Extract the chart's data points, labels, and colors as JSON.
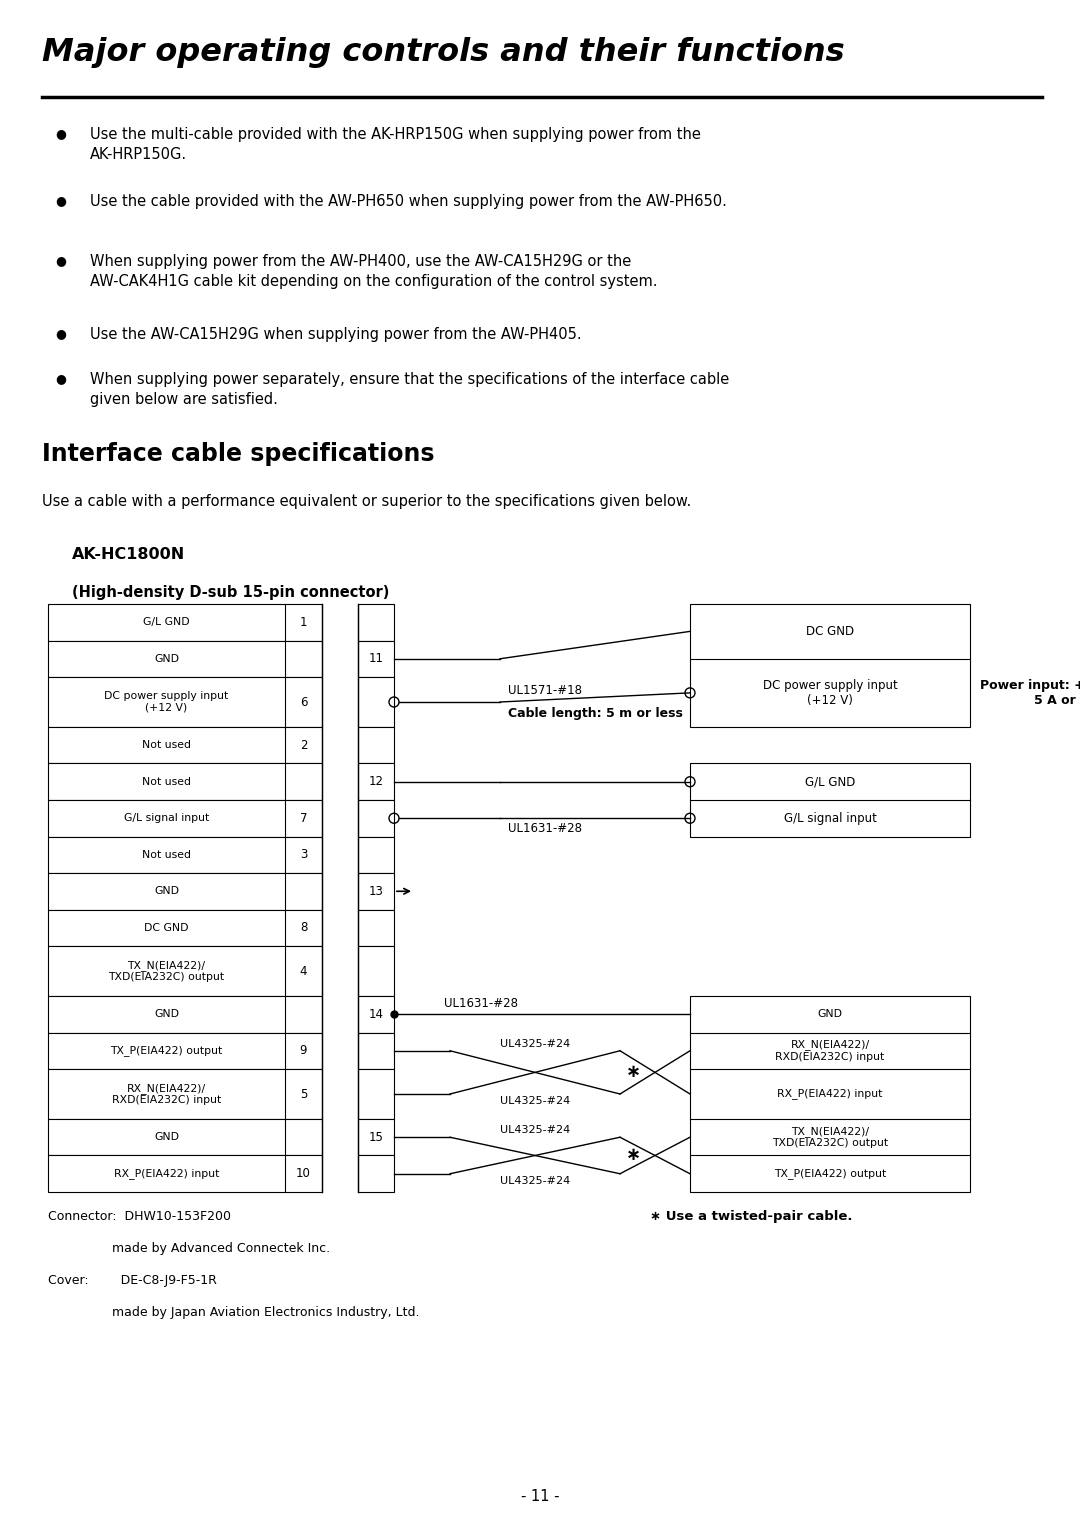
{
  "title": "Major operating controls and their functions",
  "bullet1": "Use the multi-cable provided with the AK-HRP150G when supplying power from the AK-HRP150G.",
  "bullet2": "Use the cable provided with the AW-PH650 when supplying power from the AW-PH650.",
  "bullet3": "When supplying power from the AW-PH400, use the AW-CA15H29G or the AW-CAK4H1G cable kit depending on the configuration of the control system.",
  "bullet4": "Use the AW-CA15H29G when supplying power from the AW-PH405.",
  "bullet5": "When supplying power separately, ensure that the specifications of the interface cable given below are satisfied.",
  "section_title": "Interface cable specifications",
  "section_intro": "Use a cable with a performance equivalent or superior to the specifications given below.",
  "connector_label": "AK-HC1800N",
  "connector_sub": "(High-density D-sub 15-pin connector)",
  "twisted_note": "∗ Use a twisted-pair cable.",
  "page_number": "- 11 -",
  "connector_line1": "Connector:  DHW10-153F200",
  "connector_line2": "                made by Advanced Connectek Inc.",
  "cover_line1": "Cover:        DE-C8-J9-F5-1R",
  "cover_line2": "                made by Japan Aviation Electronics Industry, Ltd.",
  "bg_color": "#ffffff",
  "text_color": "#000000"
}
